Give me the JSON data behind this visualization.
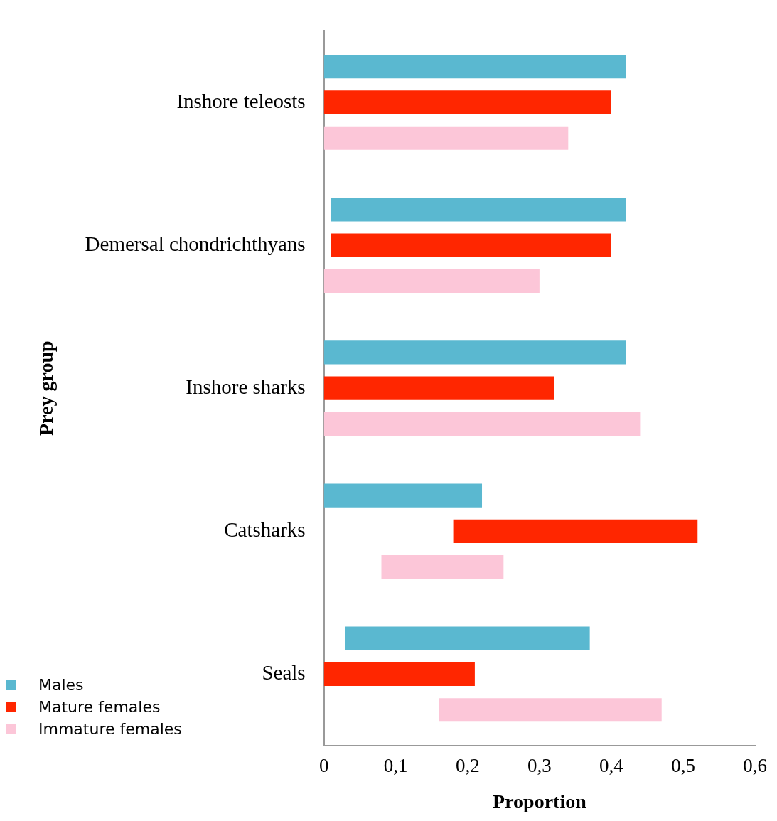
{
  "chart_data": {
    "type": "bar",
    "orientation": "horizontal",
    "xlabel": "Proportion",
    "ylabel": "Prey group",
    "categories": [
      "Inshore teleosts",
      "Demersal chondrichthyans",
      "Inshore sharks",
      "Catsharks",
      "Seals"
    ],
    "series": [
      {
        "name": "Males",
        "color": "#5ab8d0",
        "base": [
          0,
          0.01,
          0,
          0,
          0.03
        ],
        "values": [
          0.42,
          0.41,
          0.42,
          0.22,
          0.34
        ]
      },
      {
        "name": "Mature females",
        "color": "#ff2600",
        "base": [
          0,
          0.01,
          0,
          0.18,
          0
        ],
        "values": [
          0.4,
          0.39,
          0.32,
          0.34,
          0.21
        ]
      },
      {
        "name": "Immature females",
        "color": "#fcc6d8",
        "base": [
          0,
          0,
          0,
          0.08,
          0.16
        ],
        "values": [
          0.34,
          0.3,
          0.44,
          0.17,
          0.31
        ]
      }
    ],
    "xlim": [
      0,
      0.6
    ],
    "xticks": [
      0,
      {
        "value": 0.1,
        "label": "0,1"
      },
      {
        "value": 0.2,
        "label": "0,2"
      },
      {
        "value": 0.3,
        "label": "0,3"
      },
      {
        "value": 0.4,
        "label": "0,4"
      },
      {
        "value": 0.5,
        "label": "0,5"
      },
      {
        "value": 0.6,
        "label": "0,6"
      }
    ],
    "grid": false,
    "legend": "bottom left"
  }
}
